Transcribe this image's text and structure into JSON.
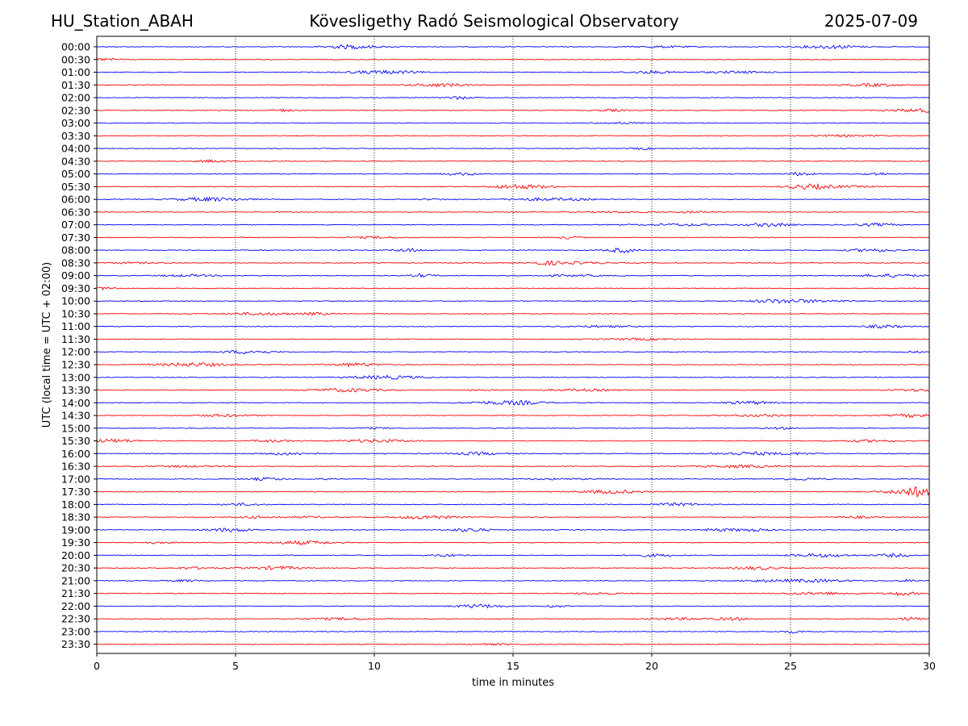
{
  "header": {
    "station": "HU_Station_ABAH",
    "title": "Kövesligethy Radó Seismological Observatory",
    "date": "2025-07-09"
  },
  "chart_data": {
    "type": "line",
    "xlabel": "time in minutes",
    "ylabel": "UTC (local time = UTC + 02:00)",
    "xlim": [
      0,
      30
    ],
    "xticks": [
      0,
      5,
      10,
      15,
      20,
      25,
      30
    ],
    "grid": "vertical dotted at x ticks",
    "colors": {
      "even_traces": "#0000ff",
      "odd_traces": "#ff0000"
    },
    "rows": [
      "00:00",
      "00:30",
      "01:00",
      "01:30",
      "02:00",
      "02:30",
      "03:00",
      "03:30",
      "04:00",
      "04:30",
      "05:00",
      "05:30",
      "06:00",
      "06:30",
      "07:00",
      "07:30",
      "08:00",
      "08:30",
      "09:00",
      "09:30",
      "10:00",
      "10:30",
      "11:00",
      "11:30",
      "12:00",
      "12:30",
      "13:00",
      "13:30",
      "14:00",
      "14:30",
      "15:00",
      "15:30",
      "16:00",
      "16:30",
      "17:00",
      "17:30",
      "18:00",
      "18:30",
      "19:00",
      "19:30",
      "20:00",
      "20:30",
      "21:00",
      "21:30",
      "22:00",
      "22:30",
      "23:00",
      "23:30"
    ]
  }
}
